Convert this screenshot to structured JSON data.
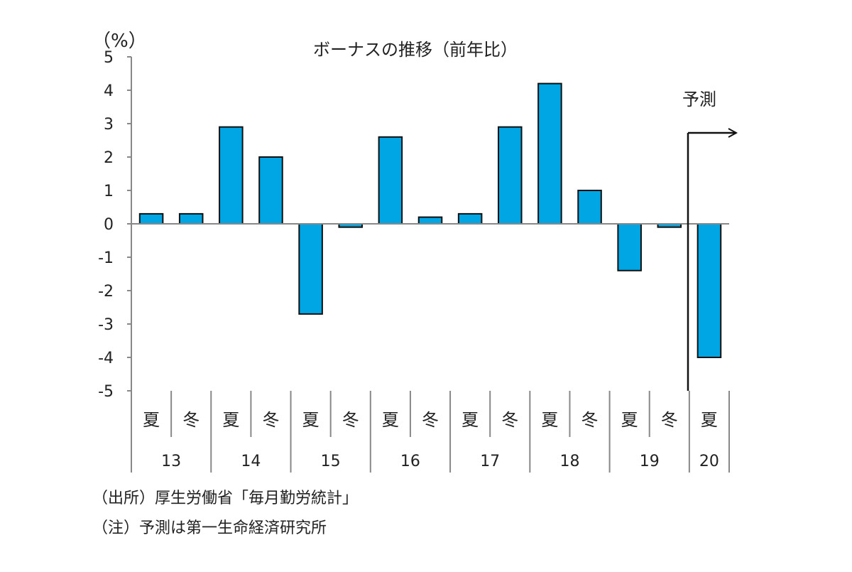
{
  "chart_data": {
    "type": "bar",
    "title": "ボーナスの推移（前年比）",
    "ylabel": "（%）",
    "ylim": [
      -5,
      5
    ],
    "yticks": [
      "5",
      "4",
      "3",
      "2",
      "1",
      "0",
      "-1",
      "-2",
      "-3",
      "-4",
      "-5"
    ],
    "categories": [
      "夏",
      "冬",
      "夏",
      "冬",
      "夏",
      "冬",
      "夏",
      "冬",
      "夏",
      "冬",
      "夏",
      "冬",
      "夏",
      "冬",
      "夏"
    ],
    "years": [
      "13",
      "14",
      "15",
      "16",
      "17",
      "18",
      "19",
      "20"
    ],
    "values": [
      0.3,
      0.3,
      2.9,
      2.0,
      -2.7,
      -0.1,
      2.6,
      0.2,
      0.3,
      2.9,
      4.2,
      1.0,
      -1.4,
      -0.1,
      -4.0
    ],
    "forecast_label": "予測",
    "colors": {
      "bar": "#00a5e3",
      "bar_stroke": "#111111",
      "axis": "#888888"
    },
    "grid": false,
    "legend": "none"
  },
  "notes": {
    "source": "（出所）厚生労働省「毎月勤労統計」",
    "note": "（注）予測は第一生命経済研究所"
  }
}
